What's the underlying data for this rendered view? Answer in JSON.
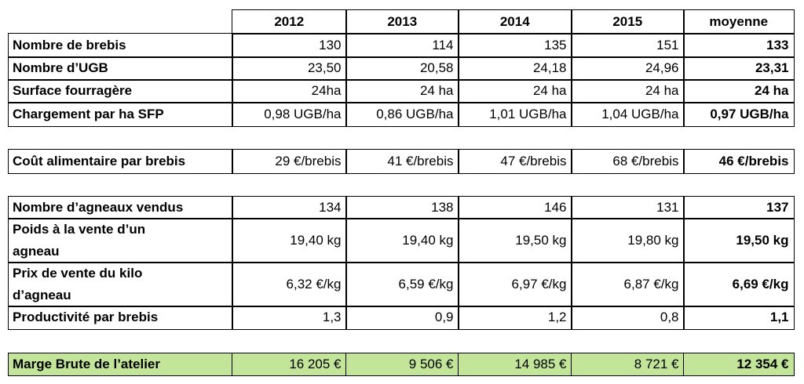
{
  "header": {
    "columns": [
      "2012",
      "2013",
      "2014",
      "2015",
      "moyenne"
    ]
  },
  "groups": [
    {
      "rows": [
        {
          "label": "Nombre de brebis",
          "values": [
            "130",
            "114",
            "135",
            "151",
            "133"
          ]
        },
        {
          "label": "Nombre d’UGB",
          "values": [
            "23,50",
            "20,58",
            "24,18",
            "24,96",
            "23,31"
          ]
        },
        {
          "label": "Surface fourragère",
          "values": [
            "24ha",
            "24 ha",
            "24 ha",
            "24 ha",
            "24 ha"
          ]
        },
        {
          "label": "Chargement par ha SFP",
          "values": [
            "0,98 UGB/ha",
            "0,86 UGB/ha",
            "1,01 UGB/ha",
            "1,04 UGB/ha",
            "0,97 UGB/ha"
          ]
        }
      ]
    },
    {
      "rows": [
        {
          "label": "Coût alimentaire par brebis",
          "values": [
            "29 €/brebis",
            "41 €/brebis",
            "47 €/brebis",
            "68 €/brebis",
            "46 €/brebis"
          ]
        }
      ]
    },
    {
      "rows": [
        {
          "label": "Nombre d’agneaux vendus",
          "values": [
            "134",
            "138",
            "146",
            "131",
            "137"
          ]
        },
        {
          "label": "Poids à la vente d’un agneau",
          "values": [
            "19,40 kg",
            "19,40 kg",
            "19,50 kg",
            "19,80 kg",
            "19,50 kg"
          ]
        },
        {
          "label": "Prix de vente du kilo d’agneau",
          "values": [
            "6,32 €/kg",
            "6,59 €/kg",
            "6,97 €/kg",
            "6,87 €/kg",
            "6,69 €/kg"
          ]
        },
        {
          "label": "Productivité par brebis",
          "values": [
            "1,3",
            "0,9",
            "1,2",
            "0,8",
            "1,1"
          ]
        }
      ]
    },
    {
      "rows": [
        {
          "label": "Marge Brute de l’atelier",
          "values": [
            "16 205 €",
            "9 506 €",
            "14 985 €",
            "8 721 €",
            "12 354 €"
          ]
        }
      ]
    }
  ]
}
